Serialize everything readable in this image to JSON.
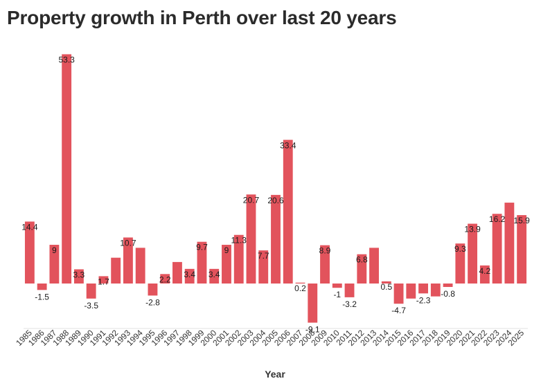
{
  "title": "Property growth in Perth over last 20 years",
  "chart_data": {
    "type": "bar",
    "title": "Property growth in Perth over last 20 years",
    "xlabel": "Year",
    "ylabel": "",
    "categories": [
      "1985",
      "1986",
      "1987",
      "1988",
      "1989",
      "1990",
      "1991",
      "1992",
      "1993",
      "1994",
      "1995",
      "1996",
      "1997",
      "1998",
      "1999",
      "2000",
      "2001",
      "2002",
      "2003",
      "2004",
      "2005",
      "2006",
      "2007",
      "2008",
      "2009",
      "2010",
      "2011",
      "2012",
      "2013",
      "2014",
      "2015",
      "2016",
      "2017",
      "2018",
      "2019",
      "2020",
      "2021",
      "2022",
      "2023",
      "2024",
      "2025"
    ],
    "values": [
      14.4,
      -1.5,
      9,
      53.3,
      3.3,
      -3.5,
      1.7,
      6,
      10.7,
      8.3,
      -2.8,
      2.2,
      5,
      3.4,
      9.7,
      3.4,
      9,
      11.3,
      20.7,
      7.7,
      20.6,
      33.4,
      0.2,
      -9.1,
      8.9,
      -1,
      -3.2,
      6.8,
      8.3,
      0.5,
      -4.7,
      -3.5,
      -2.3,
      -3,
      -0.8,
      9.3,
      13.9,
      4.2,
      16.2,
      18.8,
      15.9
    ],
    "data_labels": [
      "14.4",
      "-1.5",
      "9",
      "53.3",
      "3.3",
      "-3.5",
      "1.7",
      "",
      "10.7",
      "",
      "-2.8",
      "2.2",
      "",
      "3.4",
      "9.7",
      "3.4",
      "9",
      "11.3",
      "20.7",
      "7.7",
      "20.6",
      "33.4",
      "0.2",
      "-9.1",
      "8.9",
      "-1",
      "-3.2",
      "6.8",
      "",
      "0.5",
      "-4.7",
      "",
      "-2.3",
      "",
      "-0.8",
      "9.3",
      "13.9",
      "4.2",
      "16.2",
      "",
      "15.9"
    ],
    "ylim": [
      -11,
      57
    ],
    "grid": false,
    "bar_color": "#e2535c"
  }
}
